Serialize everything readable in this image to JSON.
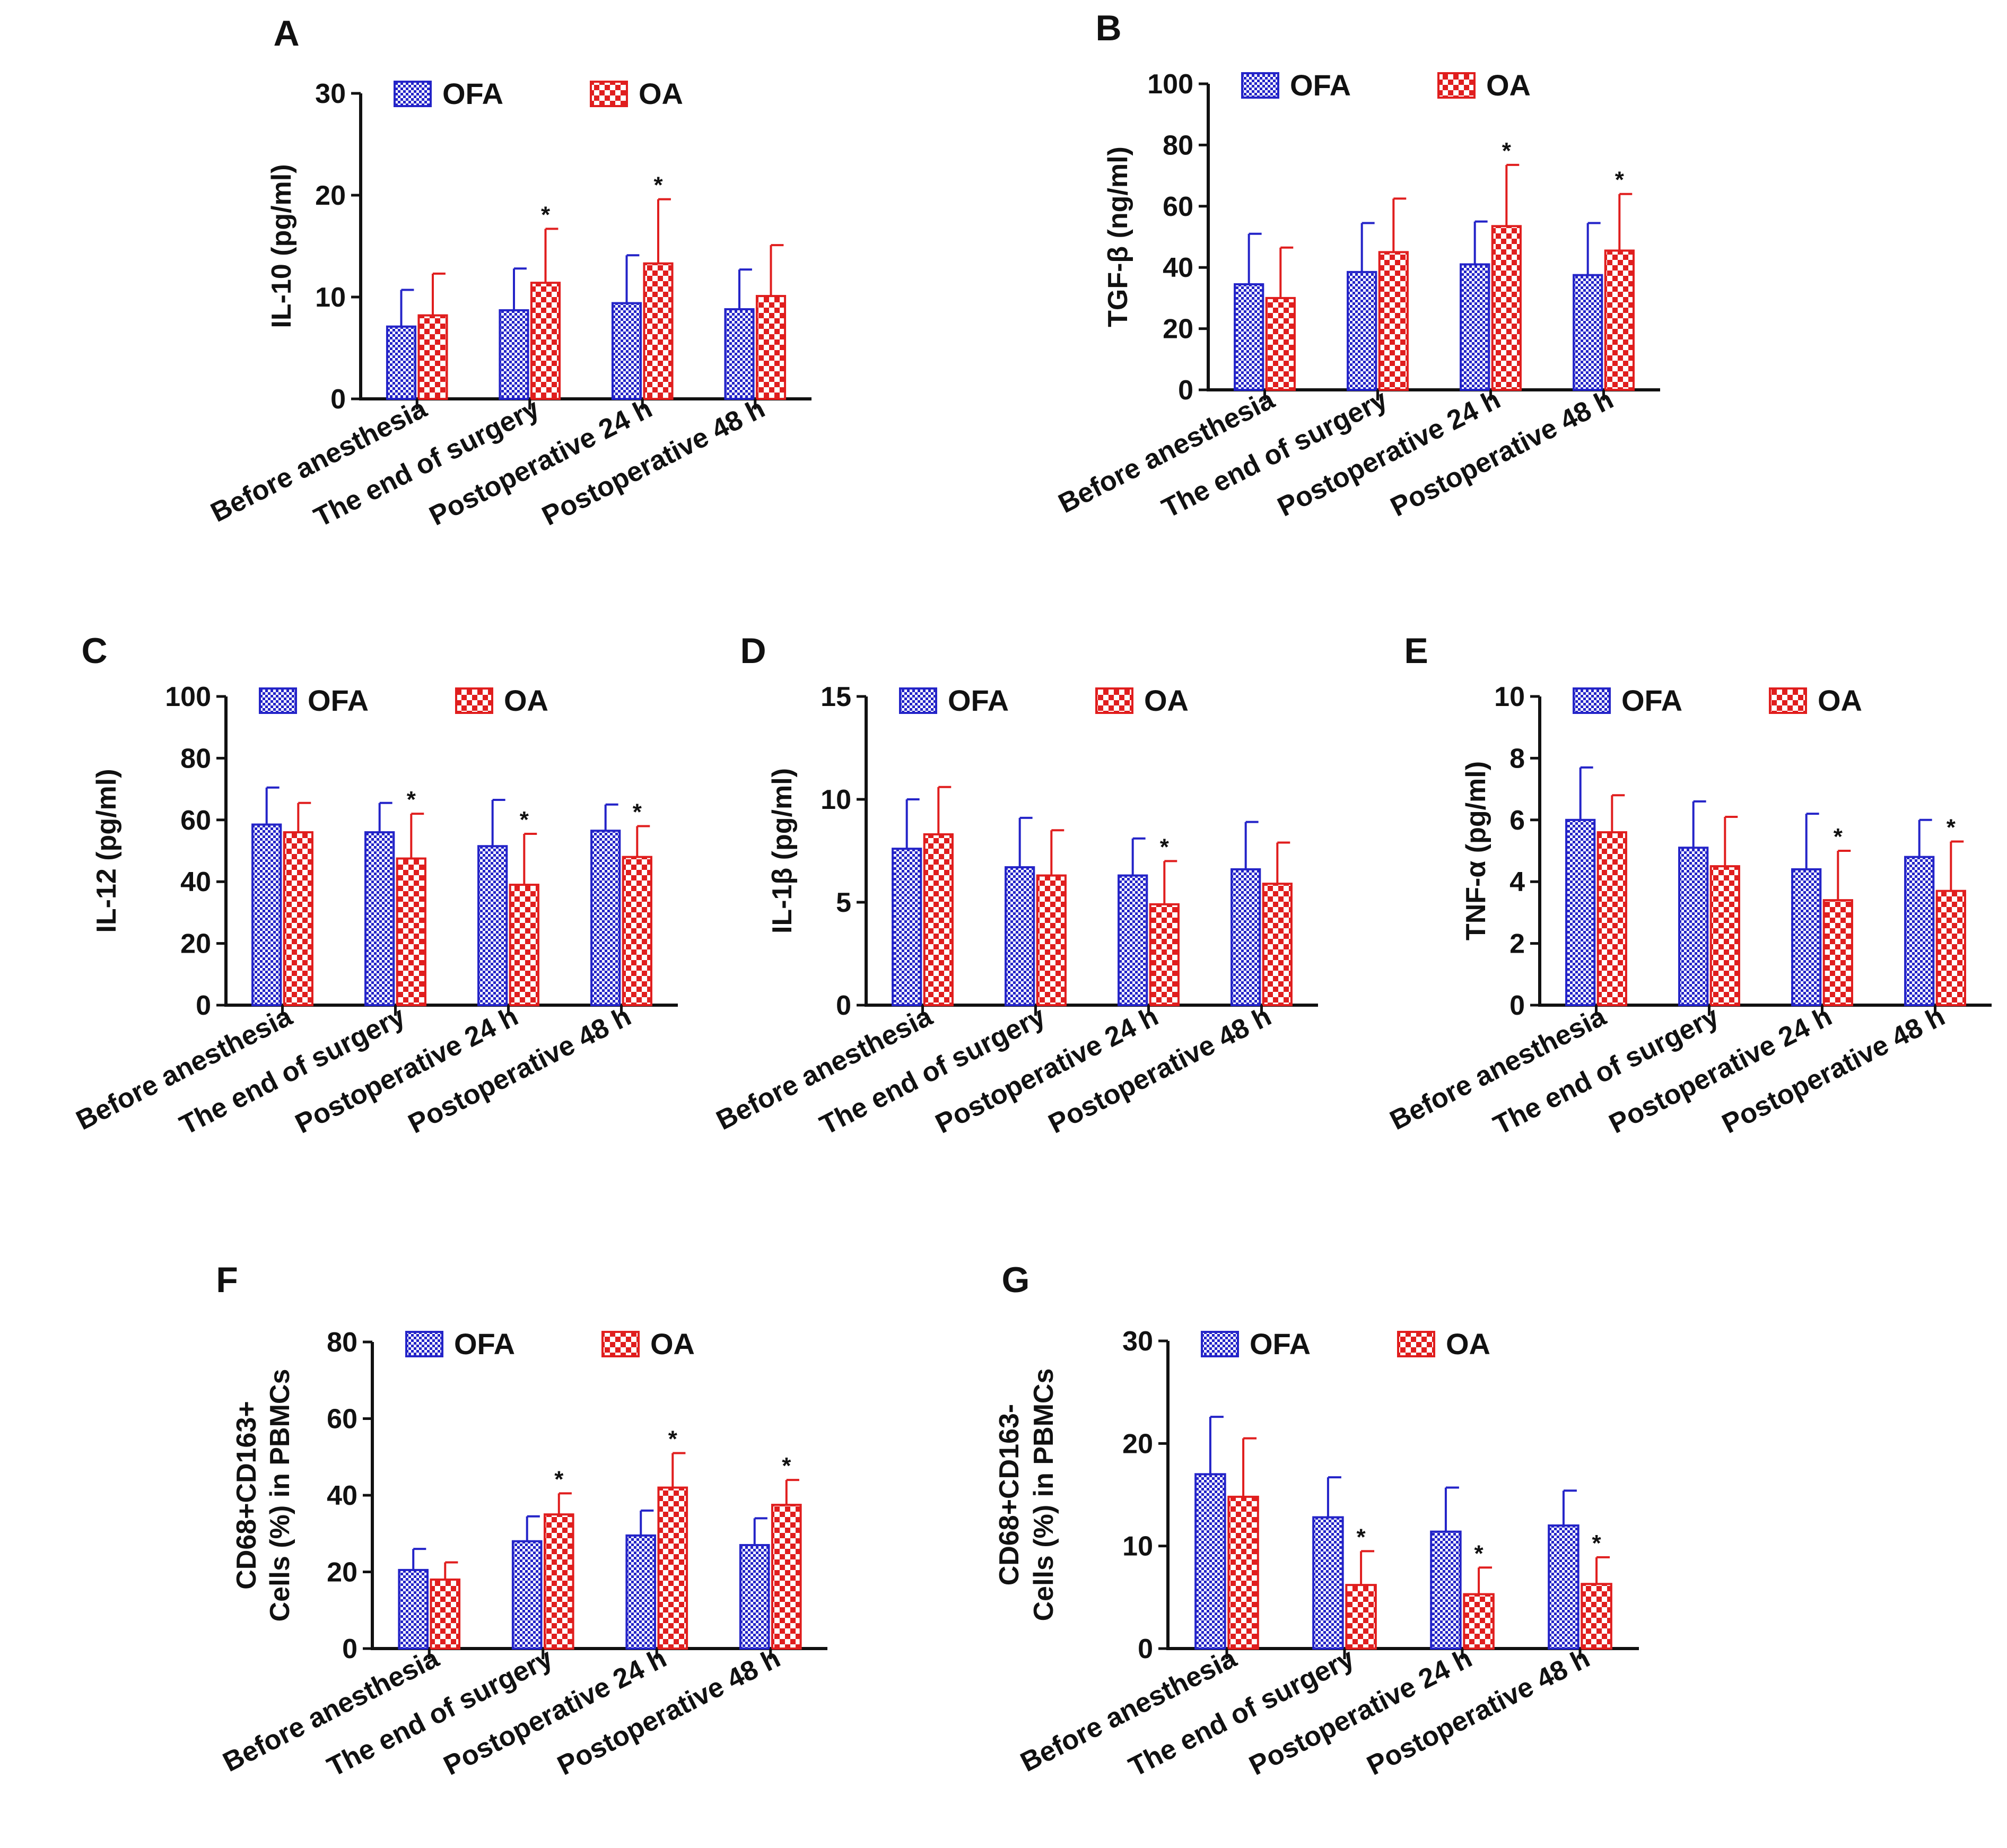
{
  "colors": {
    "ofa": "#2424c8",
    "oa": "#e01e1e",
    "axis": "#111111"
  },
  "chart_data": [
    {
      "type": "bar",
      "panel": "A",
      "ylabel": "IL-10 (pg/ml)",
      "xlabel": "",
      "title": "",
      "ylim": [
        0,
        30
      ],
      "yticks": [
        0,
        10,
        20,
        30
      ],
      "categories": [
        "Before anesthesia",
        "The end of surgery",
        "Postoperative 24 h",
        "Postoperative 48 h"
      ],
      "series": [
        {
          "name": "OFA",
          "values": [
            7.1,
            8.7,
            9.4,
            8.8
          ],
          "errors": [
            3.6,
            4.1,
            4.7,
            3.9
          ],
          "sig": [
            "",
            "",
            "",
            ""
          ]
        },
        {
          "name": "OA",
          "values": [
            8.2,
            11.4,
            13.3,
            10.1
          ],
          "errors": [
            4.1,
            5.3,
            6.3,
            5.0
          ],
          "sig": [
            "",
            "*",
            "*",
            ""
          ]
        }
      ],
      "legend_position": "top-left"
    },
    {
      "type": "bar",
      "panel": "B",
      "ylabel": "TGF-β (ng/ml)",
      "xlabel": "",
      "title": "",
      "ylim": [
        0,
        100
      ],
      "yticks": [
        0,
        20,
        40,
        60,
        80,
        100
      ],
      "categories": [
        "Before anesthesia",
        "The end of surgery",
        "Postoperative 24 h",
        "Postoperative 48 h"
      ],
      "series": [
        {
          "name": "OFA",
          "values": [
            34.5,
            38.5,
            41.0,
            37.5
          ],
          "errors": [
            16.5,
            16.0,
            14.0,
            17.0
          ],
          "sig": [
            "",
            "",
            "",
            ""
          ]
        },
        {
          "name": "OA",
          "values": [
            30.0,
            45.0,
            53.5,
            45.5
          ],
          "errors": [
            16.5,
            17.5,
            20.0,
            18.5
          ],
          "sig": [
            "",
            "",
            "*",
            "*"
          ]
        }
      ],
      "legend_position": "top-left"
    },
    {
      "type": "bar",
      "panel": "C",
      "ylabel": "IL-12 (pg/ml)",
      "xlabel": "",
      "title": "",
      "ylim": [
        0,
        100
      ],
      "yticks": [
        0,
        20,
        40,
        60,
        80,
        100
      ],
      "categories": [
        "Before anesthesia",
        "The end of surgery",
        "Postoperative 24 h",
        "Postoperative 48 h"
      ],
      "series": [
        {
          "name": "OFA",
          "values": [
            58.5,
            56.0,
            51.5,
            56.5
          ],
          "errors": [
            12.0,
            9.5,
            15.0,
            8.5
          ],
          "sig": [
            "",
            "",
            "",
            ""
          ]
        },
        {
          "name": "OA",
          "values": [
            56.0,
            47.5,
            39.0,
            48.0
          ],
          "errors": [
            9.5,
            14.5,
            16.5,
            10.0
          ],
          "sig": [
            "",
            "*",
            "*",
            "*"
          ]
        }
      ],
      "legend_position": "top-left"
    },
    {
      "type": "bar",
      "panel": "D",
      "ylabel": "IL-1β (pg/ml)",
      "xlabel": "",
      "title": "",
      "ylim": [
        0,
        15
      ],
      "yticks": [
        0,
        5,
        10,
        15
      ],
      "categories": [
        "Before anesthesia",
        "The end of surgery",
        "Postoperative 24 h",
        "Postoperative 48 h"
      ],
      "series": [
        {
          "name": "OFA",
          "values": [
            7.6,
            6.7,
            6.3,
            6.6
          ],
          "errors": [
            2.4,
            2.4,
            1.8,
            2.3
          ],
          "sig": [
            "",
            "",
            "",
            ""
          ]
        },
        {
          "name": "OA",
          "values": [
            8.3,
            6.3,
            4.9,
            5.9
          ],
          "errors": [
            2.3,
            2.2,
            2.1,
            2.0
          ],
          "sig": [
            "",
            "",
            "*",
            ""
          ]
        }
      ],
      "legend_position": "top-left"
    },
    {
      "type": "bar",
      "panel": "E",
      "ylabel": "TNF-α (pg/ml)",
      "xlabel": "",
      "title": "",
      "ylim": [
        0,
        10
      ],
      "yticks": [
        0,
        2,
        4,
        6,
        8,
        10
      ],
      "categories": [
        "Before anesthesia",
        "The end of surgery",
        "Postoperative 24 h",
        "Postoperative 48 h"
      ],
      "series": [
        {
          "name": "OFA",
          "values": [
            6.0,
            5.1,
            4.4,
            4.8
          ],
          "errors": [
            1.7,
            1.5,
            1.8,
            1.2
          ],
          "sig": [
            "",
            "",
            "",
            ""
          ]
        },
        {
          "name": "OA",
          "values": [
            5.6,
            4.5,
            3.4,
            3.7
          ],
          "errors": [
            1.2,
            1.6,
            1.6,
            1.6
          ],
          "sig": [
            "",
            "",
            "*",
            "*"
          ]
        }
      ],
      "legend_position": "top-left"
    },
    {
      "type": "bar",
      "panel": "F",
      "ylabel": "CD68+CD163+ Cells (%) in PBMCs",
      "ylabel_lines": [
        "CD68+CD163+",
        "Cells (%) in PBMCs"
      ],
      "xlabel": "",
      "title": "",
      "ylim": [
        0,
        80
      ],
      "yticks": [
        0,
        20,
        40,
        60,
        80
      ],
      "categories": [
        "Before anesthesia",
        "The end of surgery",
        "Postoperative 24 h",
        "Postoperative 48 h"
      ],
      "series": [
        {
          "name": "OFA",
          "values": [
            20.5,
            28.0,
            29.5,
            27.0
          ],
          "errors": [
            5.5,
            6.5,
            6.5,
            7.0
          ],
          "sig": [
            "",
            "",
            "",
            ""
          ]
        },
        {
          "name": "OA",
          "values": [
            18.0,
            35.0,
            42.0,
            37.5
          ],
          "errors": [
            4.5,
            5.5,
            9.0,
            6.5
          ],
          "sig": [
            "",
            "*",
            "*",
            "*"
          ]
        }
      ],
      "legend_position": "top-left"
    },
    {
      "type": "bar",
      "panel": "G",
      "ylabel": "CD68+CD163- Cells (%) in PBMCs",
      "ylabel_lines": [
        "CD68+CD163-",
        "Cells (%) in PBMCs"
      ],
      "xlabel": "",
      "title": "",
      "ylim": [
        0,
        30
      ],
      "yticks": [
        0,
        10,
        20,
        30
      ],
      "categories": [
        "Before anesthesia",
        "The end of surgery",
        "Postoperative 24 h",
        "Postoperative 48 h"
      ],
      "series": [
        {
          "name": "OFA",
          "values": [
            17.0,
            12.8,
            11.4,
            12.0
          ],
          "errors": [
            5.6,
            3.9,
            4.3,
            3.4
          ],
          "sig": [
            "",
            "",
            "",
            ""
          ]
        },
        {
          "name": "OA",
          "values": [
            14.8,
            6.2,
            5.3,
            6.3
          ],
          "errors": [
            5.7,
            3.3,
            2.6,
            2.6
          ],
          "sig": [
            "",
            "*",
            "*",
            "*"
          ]
        }
      ],
      "legend_position": "top-left"
    }
  ]
}
